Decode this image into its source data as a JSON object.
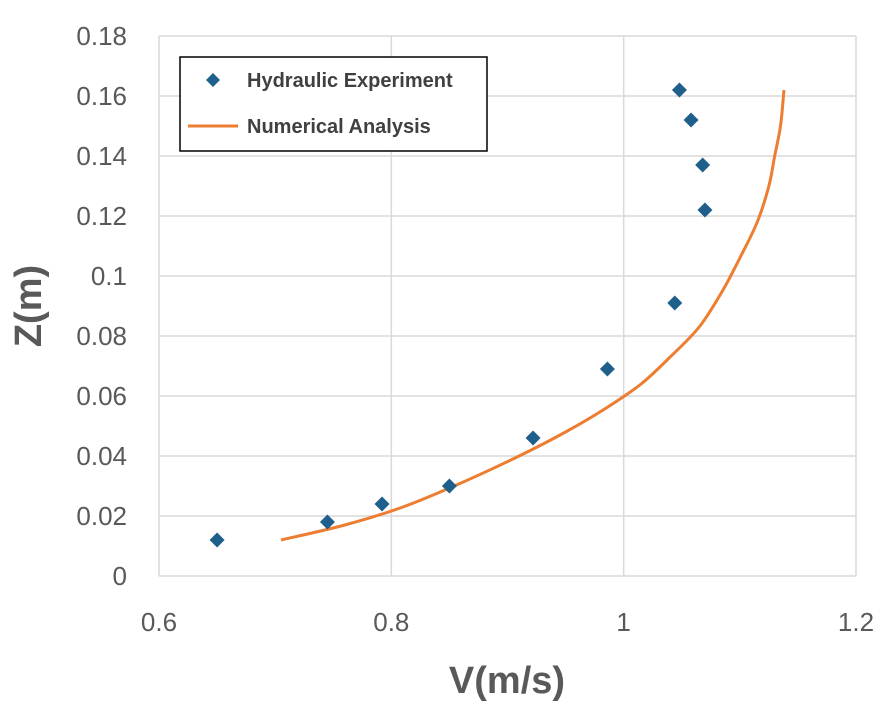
{
  "chart_data": {
    "type": "scatter",
    "title": "",
    "xlabel": "V(m/s)",
    "ylabel": "Z(m)",
    "xlim": [
      0.6,
      1.2
    ],
    "ylim": [
      0,
      0.18
    ],
    "xticks": [
      "0.6",
      "0.8",
      "1",
      "1.2"
    ],
    "xtick_values": [
      0.6,
      0.8,
      1.0,
      1.2
    ],
    "yticks": [
      "0",
      "0.02",
      "0.04",
      "0.06",
      "0.08",
      "0.1",
      "0.12",
      "0.14",
      "0.16",
      "0.18"
    ],
    "ytick_values": [
      0,
      0.02,
      0.04,
      0.06,
      0.08,
      0.1,
      0.12,
      0.14,
      0.16,
      0.18
    ],
    "grid": true,
    "legend_position": "top-left",
    "series": [
      {
        "name": "Hydraulic Experiment",
        "type": "scatter",
        "marker": "diamond",
        "color": "#1f5f8b",
        "points": [
          {
            "x": 0.65,
            "y": 0.012
          },
          {
            "x": 0.745,
            "y": 0.018
          },
          {
            "x": 0.792,
            "y": 0.024
          },
          {
            "x": 0.85,
            "y": 0.03
          },
          {
            "x": 0.922,
            "y": 0.046
          },
          {
            "x": 0.986,
            "y": 0.069
          },
          {
            "x": 1.044,
            "y": 0.091
          },
          {
            "x": 1.07,
            "y": 0.122
          },
          {
            "x": 1.068,
            "y": 0.137
          },
          {
            "x": 1.058,
            "y": 0.152
          },
          {
            "x": 1.048,
            "y": 0.162
          }
        ]
      },
      {
        "name": "Numerical Analysis",
        "type": "line",
        "color": "#ed7d31",
        "points": [
          {
            "x": 0.705,
            "y": 0.012
          },
          {
            "x": 0.76,
            "y": 0.017
          },
          {
            "x": 0.81,
            "y": 0.023
          },
          {
            "x": 0.86,
            "y": 0.031
          },
          {
            "x": 0.91,
            "y": 0.04
          },
          {
            "x": 0.95,
            "y": 0.048
          },
          {
            "x": 0.985,
            "y": 0.056
          },
          {
            "x": 1.015,
            "y": 0.064
          },
          {
            "x": 1.04,
            "y": 0.073
          },
          {
            "x": 1.065,
            "y": 0.083
          },
          {
            "x": 1.085,
            "y": 0.095
          },
          {
            "x": 1.1,
            "y": 0.106
          },
          {
            "x": 1.115,
            "y": 0.118
          },
          {
            "x": 1.125,
            "y": 0.13
          },
          {
            "x": 1.13,
            "y": 0.14
          },
          {
            "x": 1.135,
            "y": 0.15
          },
          {
            "x": 1.138,
            "y": 0.162
          }
        ]
      }
    ]
  }
}
